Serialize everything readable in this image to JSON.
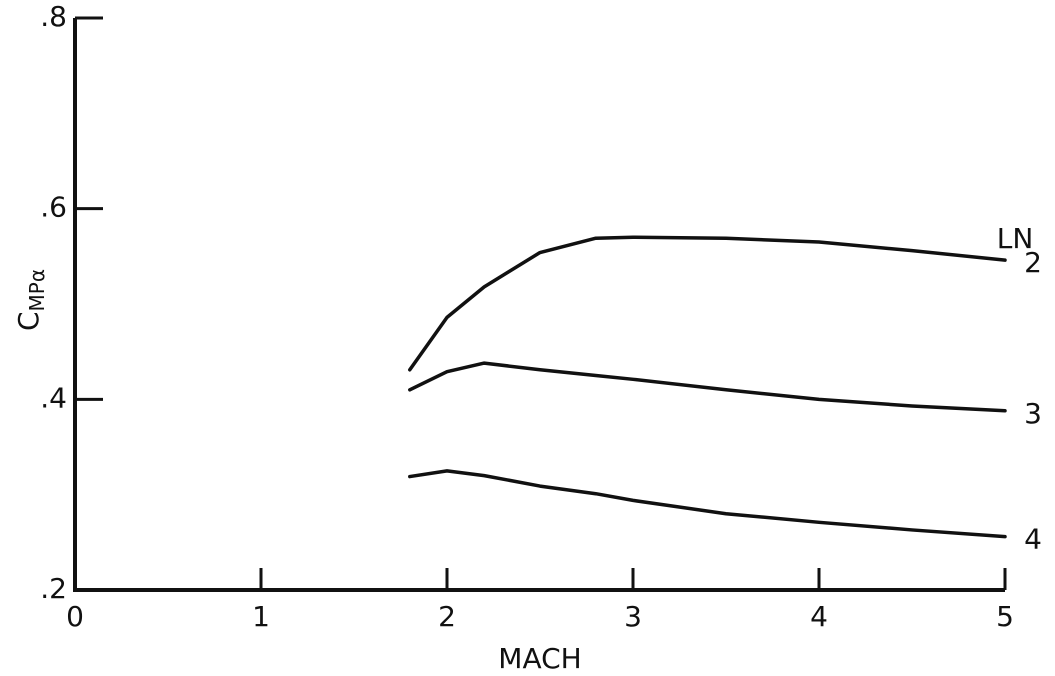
{
  "chart_data": {
    "type": "line",
    "y_label": {
      "main": "C",
      "sub": "MPα"
    },
    "x_label": "MACH",
    "legend_title": "LN",
    "x": [
      1.8,
      2.0,
      2.2,
      2.5,
      2.8,
      3.0,
      3.5,
      4.0,
      4.5,
      5.0
    ],
    "series": [
      {
        "name": "2",
        "color": "#111111",
        "values": [
          0.431,
          0.486,
          0.518,
          0.554,
          0.569,
          0.57,
          0.569,
          0.565,
          0.556,
          0.546
        ]
      },
      {
        "name": "3",
        "color": "#111111",
        "values": [
          0.41,
          0.429,
          0.438,
          0.431,
          0.425,
          0.421,
          0.41,
          0.4,
          0.393,
          0.388
        ]
      },
      {
        "name": "4",
        "color": "#111111",
        "values": [
          0.319,
          0.325,
          0.32,
          0.309,
          0.301,
          0.294,
          0.28,
          0.271,
          0.263,
          0.256
        ]
      }
    ],
    "xlim": [
      0,
      5
    ],
    "ylim": [
      0.2,
      0.8
    ],
    "xticks": [
      0,
      1,
      2,
      3,
      4,
      5
    ],
    "yticks": [
      {
        "value": 0.2,
        "label": ".2"
      },
      {
        "value": 0.4,
        "label": ".4"
      },
      {
        "value": 0.6,
        "label": ".6"
      },
      {
        "value": 0.8,
        "label": ".8"
      }
    ]
  }
}
